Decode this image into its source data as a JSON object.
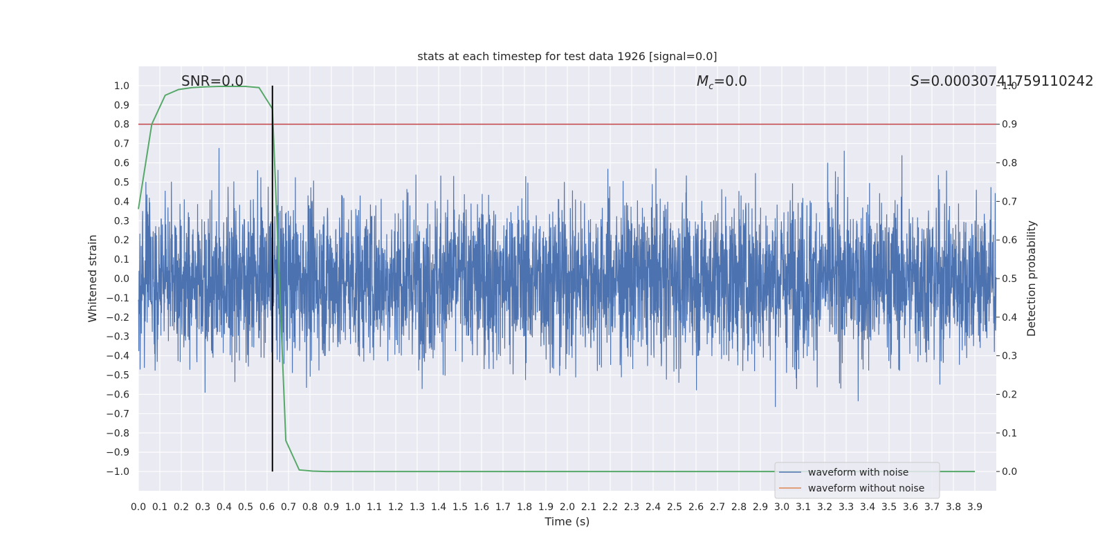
{
  "chart_data": {
    "type": "line",
    "title": "stats at each timestep for test data 1926 [signal=0.0]",
    "xlabel": "Time (s)",
    "ylabel": "Whitened strain",
    "y2label": "Detection probability",
    "xlim": [
      0.0,
      4.0
    ],
    "ylim": [
      -1.1,
      1.1
    ],
    "y2lim": [
      -0.05,
      1.05
    ],
    "x_ticks": [
      "0.0",
      "0.1",
      "0.2",
      "0.3",
      "0.4",
      "0.5",
      "0.6",
      "0.7",
      "0.8",
      "0.9",
      "1.0",
      "1.1",
      "1.2",
      "1.3",
      "1.4",
      "1.5",
      "1.6",
      "1.7",
      "1.8",
      "1.9",
      "2.0",
      "2.1",
      "2.2",
      "2.3",
      "2.4",
      "2.5",
      "2.6",
      "2.7",
      "2.8",
      "2.9",
      "3.0",
      "3.1",
      "3.2",
      "3.3",
      "3.4",
      "3.5",
      "3.6",
      "3.7",
      "3.8",
      "3.9"
    ],
    "y_ticks": [
      "1.0",
      "0.9",
      "0.8",
      "0.7",
      "0.6",
      "0.5",
      "0.4",
      "0.3",
      "0.2",
      "0.1",
      "0.0",
      "-0.1",
      "-0.2",
      "-0.3",
      "-0.4",
      "-0.5",
      "-0.6",
      "-0.7",
      "-0.8",
      "-0.9",
      "-1.0"
    ],
    "y2_ticks": [
      "1.0",
      "0.9",
      "0.8",
      "0.7",
      "0.6",
      "0.5",
      "0.4",
      "0.3",
      "0.2",
      "0.1",
      "0.0"
    ],
    "grid": true,
    "annotations": {
      "snr": "SNR=0.0",
      "mc_symbol": "M",
      "mc_sub": "c",
      "mc_value": "=0.0",
      "s_symbol": "S",
      "s_value": "=0.00030741759110242"
    },
    "threshold": {
      "y2": 0.9,
      "color": "#c44e52"
    },
    "vline": {
      "x": 0.625,
      "y_min": -1.0,
      "y_max": 1.0,
      "color": "#000000"
    },
    "noise": {
      "samples": 4000,
      "color": "#4c72b0"
    },
    "series": [
      {
        "name": "waveform with noise",
        "color": "#4c72b0"
      },
      {
        "name": "waveform without noise",
        "color": "#dd8452"
      },
      {
        "color": "#55a868",
        "axis": "y2",
        "x": [
          0.0,
          0.0625,
          0.125,
          0.1875,
          0.25,
          0.3125,
          0.375,
          0.4375,
          0.5,
          0.5625,
          0.625,
          0.6875,
          0.75,
          0.8125,
          0.875,
          1.0,
          1.5,
          2.0,
          2.5,
          3.0,
          3.5,
          3.9
        ],
        "y": [
          0.68,
          0.9,
          0.975,
          0.99,
          0.995,
          0.997,
          0.998,
          0.998,
          0.998,
          0.995,
          0.94,
          0.08,
          0.004,
          0.001,
          0.0,
          0.0,
          0.0,
          0.0,
          0.0,
          0.0,
          0.0,
          0.0
        ]
      }
    ],
    "legend": {
      "placement": "lower-right"
    }
  }
}
